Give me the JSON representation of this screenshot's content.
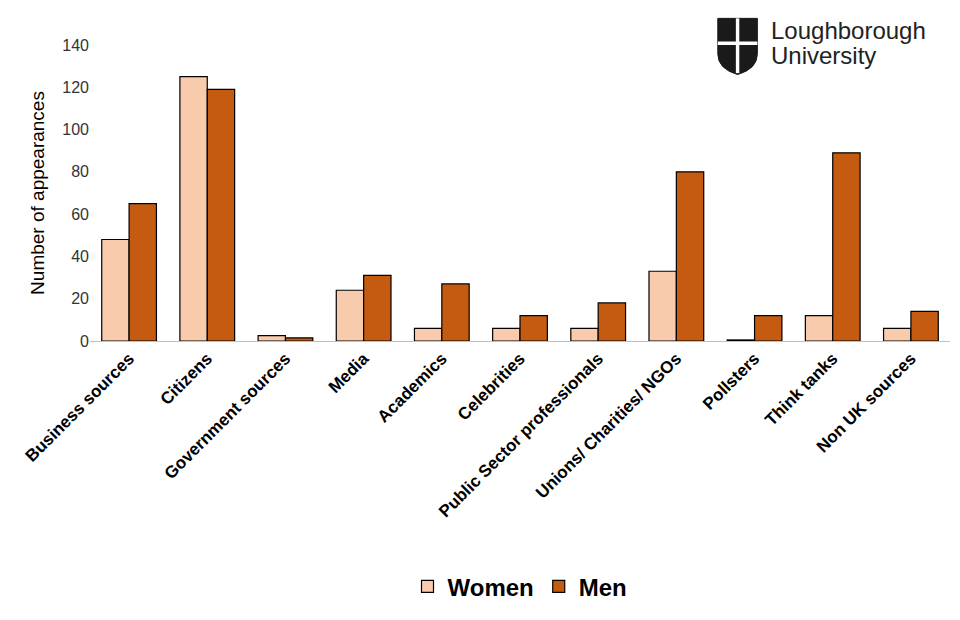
{
  "chart_data": {
    "type": "bar",
    "y_label": "Number of appearances",
    "categories": [
      "Business sources",
      "Citizens",
      "Government sources",
      "Media",
      "Academics",
      "Celebrities",
      "Public Sector professionals",
      "Unions/ Charities/ NGOs",
      "Pollsters",
      "Think tanks",
      "Non UK sources"
    ],
    "series": [
      {
        "name": "Women",
        "color": "#f8cbad",
        "values": [
          48,
          125,
          2.5,
          24,
          6,
          6,
          6,
          33,
          0.5,
          12,
          6
        ]
      },
      {
        "name": "Men",
        "color": "#c55a11",
        "values": [
          65,
          119,
          1.5,
          31,
          27,
          12,
          18,
          80,
          12,
          89,
          14
        ]
      }
    ],
    "ylim": [
      0,
      140
    ],
    "yticks": [
      0,
      20,
      40,
      60,
      80,
      100,
      120,
      140
    ],
    "grid": false,
    "legend": "bottom",
    "annotations": [
      "Loughborough",
      "University"
    ]
  }
}
